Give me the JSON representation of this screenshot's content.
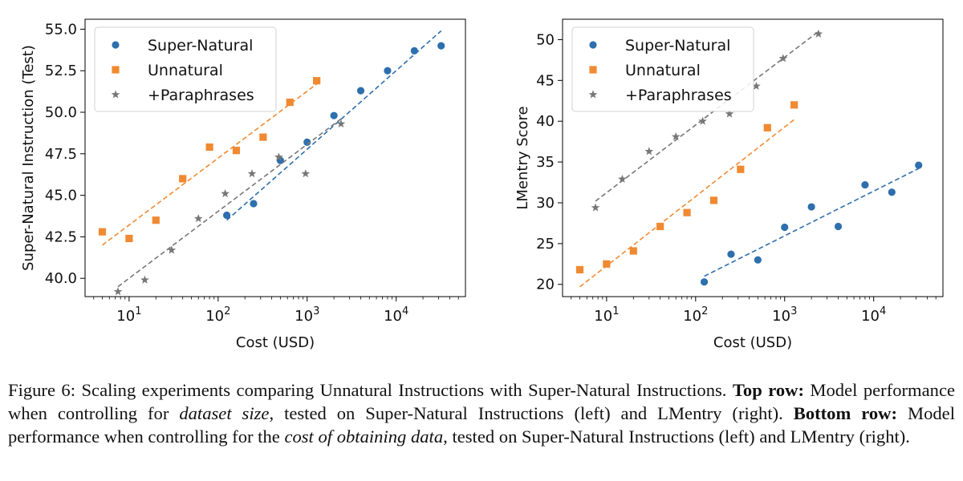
{
  "chart_data": [
    {
      "type": "scatter",
      "title": "",
      "xlabel": "Cost (USD)",
      "ylabel": "Super-Natural Instruction (Test)",
      "xscale": "log",
      "xlim": [
        3.2,
        60000
      ],
      "ylim": [
        38.9,
        55.6
      ],
      "xticks": [
        10,
        100,
        1000,
        10000
      ],
      "xtick_labels": [
        {
          "base": "10",
          "exp": "1"
        },
        {
          "base": "10",
          "exp": "2"
        },
        {
          "base": "10",
          "exp": "3"
        },
        {
          "base": "10",
          "exp": "4"
        }
      ],
      "yticks": [
        40.0,
        42.5,
        45.0,
        47.5,
        50.0,
        52.5,
        55.0
      ],
      "ytick_labels": [
        "40.0",
        "42.5",
        "45.0",
        "47.5",
        "50.0",
        "52.5",
        "55.0"
      ],
      "legend_position": "top-left",
      "series": [
        {
          "name": "Super-Natural",
          "color": "#2e6fad",
          "marker": "circle",
          "x": [
            125,
            250,
            500,
            1000,
            2000,
            4000,
            8000,
            16000,
            32000
          ],
          "y": [
            43.8,
            44.5,
            47.1,
            48.2,
            49.8,
            51.3,
            52.5,
            53.7,
            54.0
          ],
          "trend": {
            "x": [
              125,
              32000
            ],
            "y": [
              43.5,
              54.9
            ]
          }
        },
        {
          "name": "Unnatural",
          "color": "#f08a32",
          "marker": "square",
          "x": [
            5,
            10,
            20,
            40,
            80,
            160,
            320,
            640,
            1280
          ],
          "y": [
            42.8,
            42.4,
            43.5,
            46.0,
            47.9,
            47.7,
            48.5,
            50.6,
            51.9
          ],
          "trend": {
            "x": [
              5,
              1280
            ],
            "y": [
              42.0,
              51.7
            ]
          }
        },
        {
          "name": "+Paraphrases",
          "color": "#777777",
          "marker": "star",
          "x": [
            7.5,
            15,
            30,
            60,
            120,
            240,
            480,
            960,
            2400
          ],
          "y": [
            39.2,
            39.9,
            41.7,
            43.6,
            45.1,
            46.3,
            47.3,
            46.3,
            49.3
          ],
          "trend": {
            "x": [
              7.5,
              2400
            ],
            "y": [
              39.5,
              49.6
            ]
          }
        }
      ]
    },
    {
      "type": "scatter",
      "title": "",
      "xlabel": "Cost (USD)",
      "ylabel": "LMentry Score",
      "xscale": "log",
      "xlim": [
        3.2,
        60000
      ],
      "ylim": [
        18.5,
        52.5
      ],
      "xticks": [
        10,
        100,
        1000,
        10000
      ],
      "xtick_labels": [
        {
          "base": "10",
          "exp": "1"
        },
        {
          "base": "10",
          "exp": "2"
        },
        {
          "base": "10",
          "exp": "3"
        },
        {
          "base": "10",
          "exp": "4"
        }
      ],
      "yticks": [
        20,
        25,
        30,
        35,
        40,
        45,
        50
      ],
      "ytick_labels": [
        "20",
        "25",
        "30",
        "35",
        "40",
        "45",
        "50"
      ],
      "legend_position": "top-left",
      "series": [
        {
          "name": "Super-Natural",
          "color": "#2e6fad",
          "marker": "circle",
          "x": [
            125,
            250,
            500,
            1000,
            2000,
            4000,
            8000,
            16000,
            32000
          ],
          "y": [
            20.3,
            23.7,
            23.0,
            27.0,
            29.5,
            27.1,
            32.2,
            31.3,
            34.6
          ],
          "trend": {
            "x": [
              125,
              32000
            ],
            "y": [
              21.0,
              34.2
            ]
          }
        },
        {
          "name": "Unnatural",
          "color": "#f08a32",
          "marker": "square",
          "x": [
            5,
            10,
            20,
            40,
            80,
            160,
            320,
            640,
            1280
          ],
          "y": [
            21.8,
            22.5,
            24.1,
            27.1,
            28.8,
            30.3,
            34.1,
            39.2,
            42.0
          ],
          "trend": {
            "x": [
              5,
              1280
            ],
            "y": [
              19.7,
              40.2
            ]
          }
        },
        {
          "name": "+Paraphrases",
          "color": "#777777",
          "marker": "star",
          "x": [
            7.5,
            15,
            30,
            60,
            120,
            240,
            480,
            960,
            2400
          ],
          "y": [
            29.4,
            32.9,
            36.3,
            38.1,
            40.0,
            40.9,
            44.3,
            47.7,
            50.7
          ],
          "trend": {
            "x": [
              7.5,
              2400
            ],
            "y": [
              30.2,
              51.0
            ]
          }
        }
      ]
    }
  ],
  "caption": {
    "label": "Figure 6: ",
    "text1": "Scaling experiments comparing Unnatural Instructions with Super-Natural Instructions. ",
    "bold1": "Top row:",
    "text2": " Model performance when controlling for ",
    "italic1": "dataset size",
    "text3": ", tested on Super-Natural Instructions (left) and LMentry (right). ",
    "bold2": "Bottom row:",
    "text4": " Model performance when controlling for the ",
    "italic2": "cost of obtaining data",
    "text5": ", tested on Super-Natural Instructions (left) and LMentry (right)."
  }
}
